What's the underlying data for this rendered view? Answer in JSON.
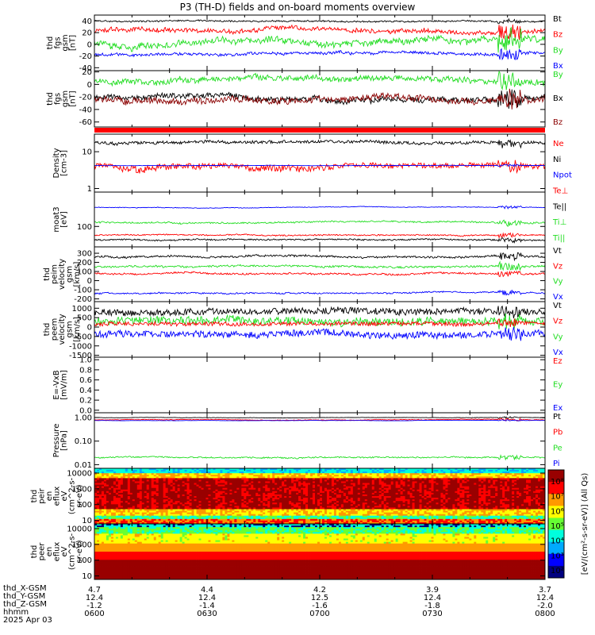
{
  "title": "P3 (TH-D) fields and on-board moments overview",
  "colors": {
    "black": "#000000",
    "red": "#ff0000",
    "green": "#22dd22",
    "blue": "#0000ff",
    "darkred": "#8b0000"
  },
  "chart_data": [
    {
      "type": "line",
      "ylabel": [
        "thd",
        "fgs",
        "gsm",
        "[nT]"
      ],
      "ylim": [
        -45,
        50
      ],
      "yticks": [
        40,
        20,
        0,
        -20,
        -40
      ],
      "yticklabels": [
        "40",
        "20",
        "0",
        "-20",
        "-40"
      ],
      "series": [
        {
          "name": "Bt",
          "color": "black",
          "mean": 40,
          "noise": 4,
          "jitter": 0.6
        },
        {
          "name": "Bz",
          "color": "red",
          "mean": 22,
          "noise": 14,
          "jitter": 0.5
        },
        {
          "name": "By",
          "color": "green",
          "mean": 5,
          "noise": 20,
          "jitter": 0.5
        },
        {
          "name": "Bx",
          "color": "blue",
          "mean": -18,
          "noise": 9,
          "jitter": 0.5
        }
      ],
      "legend": [
        "Bt",
        "Bz",
        "By",
        "Bx"
      ]
    },
    {
      "type": "line",
      "ylabel": [
        "thd",
        "fgs",
        "gsm",
        "[nT]"
      ],
      "ylim": [
        -68,
        22
      ],
      "yticks": [
        20,
        0,
        -20,
        -40,
        -60
      ],
      "yticklabels": [
        "20",
        "0",
        "-20",
        "-40",
        "-60"
      ],
      "series": [
        {
          "name": "By",
          "color": "green",
          "mean": 5,
          "noise": 14,
          "jitter": 0.6
        },
        {
          "name": "Bx",
          "color": "black",
          "mean": -20,
          "noise": 14,
          "jitter": 0.6
        },
        {
          "name": "Bz",
          "color": "darkred",
          "mean": -25,
          "noise": 16,
          "jitter": 0.6
        }
      ],
      "legend": [
        "By",
        "Bx",
        "Bz"
      ]
    },
    {
      "type": "line",
      "ylabel": [
        "Density",
        "[cm-3]"
      ],
      "ylim_log": [
        0.8,
        30
      ],
      "yticks": [
        10,
        1
      ],
      "yticklabels": [
        "10",
        "1"
      ],
      "series": [
        {
          "name": "Ne",
          "color": "black",
          "mean": 18,
          "noise": 4,
          "jitter": 0.8
        },
        {
          "name": "Ni",
          "color": "red",
          "mean": 4,
          "noise": 1.6,
          "jitter": 0.9
        },
        {
          "name": "Npot",
          "color": "blue",
          "mean": 4.2,
          "noise": 0.3,
          "jitter": 0.1
        }
      ],
      "legend": [
        "Ne",
        "Ni",
        "Npot",
        "Te⊥",
        "Te||",
        "Ti⊥",
        "Ti||"
      ]
    },
    {
      "type": "line",
      "ylabel": [
        "moat3",
        "[eV]"
      ],
      "ylim_log": [
        20,
        1500
      ],
      "yticks": [
        100
      ],
      "yticklabels": [
        "100"
      ],
      "series": [
        {
          "name": "Te⊥",
          "color": "blue",
          "mean": 450,
          "noise": 50,
          "jitter": 0.4
        },
        {
          "name": "Ti⊥",
          "color": "green",
          "mean": 140,
          "noise": 30,
          "jitter": 0.5
        },
        {
          "name": "Ti||",
          "color": "red",
          "mean": 50,
          "noise": 8,
          "jitter": 0.6
        },
        {
          "name": "Te||",
          "color": "black",
          "mean": 35,
          "noise": 6,
          "jitter": 0.6
        }
      ],
      "legend": []
    },
    {
      "type": "line",
      "ylabel": [
        "thd",
        "peim",
        "velocity",
        "gsm",
        "[km/s]"
      ],
      "ylim": [
        -230,
        370
      ],
      "yticks": [
        300,
        200,
        100,
        0,
        -100,
        -200
      ],
      "yticklabels": [
        "300",
        "200",
        "100",
        "0",
        "-100",
        "-200"
      ],
      "series": [
        {
          "name": "Vt",
          "color": "black",
          "mean": 260,
          "noise": 40,
          "jitter": 0.5
        },
        {
          "name": "Vz",
          "color": "red",
          "mean": 80,
          "noise": 35,
          "jitter": 0.5
        },
        {
          "name": "Vy",
          "color": "green",
          "mean": 150,
          "noise": 40,
          "jitter": 0.5
        },
        {
          "name": "Vx",
          "color": "blue",
          "mean": -140,
          "noise": 30,
          "jitter": 0.5
        }
      ],
      "legend": [
        "Vt",
        "Vz",
        "Vy",
        "Vx"
      ]
    },
    {
      "type": "line",
      "ylabel": [
        "thd",
        "peem",
        "velocity",
        "gsm",
        "[km/s]"
      ],
      "ylim": [
        -1600,
        1350
      ],
      "yticks": [
        1000,
        500,
        0,
        -500,
        -1000,
        -1500
      ],
      "yticklabels": [
        "1000",
        "500",
        "0",
        "-500",
        "-1000",
        "-1500"
      ],
      "series": [
        {
          "name": "Vt",
          "color": "black",
          "mean": 800,
          "noise": 250,
          "jitter": 1.4
        },
        {
          "name": "Vy",
          "color": "green",
          "mean": 300,
          "noise": 300,
          "jitter": 1.4
        },
        {
          "name": "Vz",
          "color": "red",
          "mean": 150,
          "noise": 200,
          "jitter": 1.0
        },
        {
          "name": "Vx",
          "color": "blue",
          "mean": -400,
          "noise": 250,
          "jitter": 1.4
        }
      ],
      "legend": [
        "Vt",
        "Vz",
        "Vy",
        "Vx"
      ]
    },
    {
      "type": "line",
      "ylabel": [
        "E=-VxB",
        "[mV/m]"
      ],
      "ylim": [
        -0.05,
        1.05
      ],
      "yticks": [
        1.0,
        0.8,
        0.6,
        0.4,
        0.2,
        0.0
      ],
      "yticklabels": [
        "1.0",
        "0.8",
        "0.6",
        "0.4",
        "0.2",
        "0.0"
      ],
      "series": [],
      "legend": [
        "Ez",
        "Ey",
        "Ex"
      ]
    },
    {
      "type": "line",
      "ylabel": [
        "Pressure",
        "[nPa]"
      ],
      "ylim_log": [
        0.007,
        1.6
      ],
      "yticks": [
        1.0,
        0.1,
        0.01
      ],
      "yticklabels": [
        "1.00",
        "0.10",
        "0.01"
      ],
      "series": [
        {
          "name": "Pt",
          "color": "black",
          "mean": 1.0,
          "noise": 0.08,
          "jitter": 0.3
        },
        {
          "name": "Pb",
          "color": "red",
          "mean": 0.8,
          "noise": 0.1,
          "jitter": 0.4
        },
        {
          "name": "Pi",
          "color": "blue",
          "mean": 0.75,
          "noise": 0.05,
          "jitter": 0.2
        },
        {
          "name": "Pe",
          "color": "green",
          "mean": 0.02,
          "noise": 0.004,
          "jitter": 0.6
        }
      ],
      "legend": [
        "Pt",
        "Pb",
        "Pe",
        "Pi"
      ]
    },
    {
      "type": "heatmap",
      "ylabel": [
        "thd",
        "peir",
        "en",
        "eflux",
        "eV",
        "(cm^2-s-",
        "sr-eV)"
      ],
      "ylim_log": [
        6,
        20000
      ],
      "yticks": [
        10000,
        1000,
        100,
        10
      ],
      "yticklabels": [
        "10000",
        "1000",
        "100",
        "10"
      ],
      "profile": "ion"
    },
    {
      "type": "heatmap",
      "ylabel": [
        "thd",
        "peer",
        "en",
        "eflux",
        "eV",
        "(cm^2-s-",
        "sr-eV)"
      ],
      "ylim_log": [
        6,
        20000
      ],
      "yticks": [
        10000,
        1000,
        100,
        10
      ],
      "yticklabels": [
        "10000",
        "1000",
        "100",
        "10"
      ],
      "profile": "electron"
    }
  ],
  "colorbar": {
    "ticklabels": [
      "10⁸",
      "10⁷",
      "10⁶",
      "10⁵",
      "10⁴",
      "10³",
      "10²"
    ],
    "label": "[eV/(cm²-s-sr-eV)] (All Qs)"
  },
  "x_axis": {
    "ticks": [
      "0600",
      "0630",
      "0700",
      "0730",
      "0800"
    ],
    "rows": [
      {
        "label": "thd_X-GSM",
        "values": [
          "4.7",
          "4.4",
          "4.2",
          "3.9",
          "3.7"
        ]
      },
      {
        "label": "thd_Y-GSM",
        "values": [
          "12.4",
          "12.4",
          "12.5",
          "12.4",
          "12.4"
        ]
      },
      {
        "label": "thd_Z-GSM",
        "values": [
          "-1.2",
          "-1.4",
          "-1.6",
          "-1.8",
          "-2.0"
        ]
      },
      {
        "label": "hhmm",
        "values": [
          "0600",
          "0630",
          "0700",
          "0730",
          "0800"
        ]
      }
    ],
    "date": "2025 Apr 03"
  }
}
